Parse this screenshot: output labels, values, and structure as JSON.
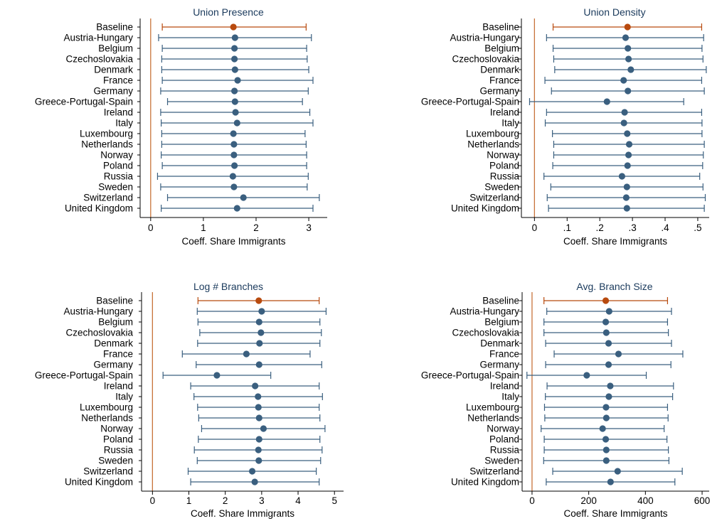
{
  "colors": {
    "baseline": "#b84a0e",
    "country": "#3a5f7f",
    "zero_line": "#c8733a",
    "axis": "#000000"
  },
  "chart_data": [
    {
      "type": "scatter",
      "subtype": "coefficient-plot",
      "title": "Union Presence",
      "xlabel": "Coeff. Share Immigrants",
      "xlim": [
        -0.2,
        3.35
      ],
      "xticks": [
        {
          "v": 0,
          "label": "0"
        },
        {
          "v": 1,
          "label": "1"
        },
        {
          "v": 2,
          "label": "2"
        },
        {
          "v": 3,
          "label": "3"
        }
      ],
      "reference_line": 0,
      "rows": [
        {
          "label": "Baseline",
          "estimate": 1.57,
          "ci": [
            0.22,
            2.95
          ]
        },
        {
          "label": "Austria-Hungary",
          "estimate": 1.6,
          "ci": [
            0.15,
            3.05
          ]
        },
        {
          "label": "Belgium",
          "estimate": 1.59,
          "ci": [
            0.22,
            2.96
          ]
        },
        {
          "label": "Czechoslovakia",
          "estimate": 1.59,
          "ci": [
            0.21,
            2.97
          ]
        },
        {
          "label": "Denmark",
          "estimate": 1.6,
          "ci": [
            0.21,
            3.0
          ]
        },
        {
          "label": "France",
          "estimate": 1.65,
          "ci": [
            0.22,
            3.08
          ]
        },
        {
          "label": "Germany",
          "estimate": 1.59,
          "ci": [
            0.19,
            2.99
          ]
        },
        {
          "label": "Greece-Portugal-Spain",
          "estimate": 1.6,
          "ci": [
            0.32,
            2.88
          ]
        },
        {
          "label": "Ireland",
          "estimate": 1.61,
          "ci": [
            0.19,
            3.02
          ]
        },
        {
          "label": "Italy",
          "estimate": 1.64,
          "ci": [
            0.2,
            3.08
          ]
        },
        {
          "label": "Luxembourg",
          "estimate": 1.57,
          "ci": [
            0.21,
            2.93
          ]
        },
        {
          "label": "Netherlands",
          "estimate": 1.58,
          "ci": [
            0.21,
            2.95
          ]
        },
        {
          "label": "Norway",
          "estimate": 1.58,
          "ci": [
            0.2,
            2.96
          ]
        },
        {
          "label": "Poland",
          "estimate": 1.59,
          "ci": [
            0.22,
            2.96
          ]
        },
        {
          "label": "Russia",
          "estimate": 1.56,
          "ci": [
            0.13,
            2.99
          ]
        },
        {
          "label": "Sweden",
          "estimate": 1.58,
          "ci": [
            0.19,
            2.97
          ]
        },
        {
          "label": "Switzerland",
          "estimate": 1.76,
          "ci": [
            0.32,
            3.2
          ]
        },
        {
          "label": "United Kingdom",
          "estimate": 1.64,
          "ci": [
            0.2,
            3.08
          ]
        }
      ]
    },
    {
      "type": "scatter",
      "subtype": "coefficient-plot",
      "title": "Union Density",
      "xlabel": "Coeff. Share Immigrants",
      "xlim": [
        -0.04,
        0.535
      ],
      "xticks": [
        {
          "v": 0,
          "label": "0"
        },
        {
          "v": 0.1,
          "label": ".1"
        },
        {
          "v": 0.2,
          "label": ".2"
        },
        {
          "v": 0.3,
          "label": ".3"
        },
        {
          "v": 0.4,
          "label": ".4"
        },
        {
          "v": 0.5,
          "label": ".5"
        }
      ],
      "reference_line": 0,
      "rows": [
        {
          "label": "Baseline",
          "estimate": 0.285,
          "ci": [
            0.057,
            0.512
          ]
        },
        {
          "label": "Austria-Hungary",
          "estimate": 0.279,
          "ci": [
            0.037,
            0.518
          ]
        },
        {
          "label": "Belgium",
          "estimate": 0.286,
          "ci": [
            0.057,
            0.513
          ]
        },
        {
          "label": "Czechoslovakia",
          "estimate": 0.288,
          "ci": [
            0.059,
            0.516
          ]
        },
        {
          "label": "Denmark",
          "estimate": 0.295,
          "ci": [
            0.062,
            0.526
          ]
        },
        {
          "label": "France",
          "estimate": 0.273,
          "ci": [
            0.032,
            0.512
          ]
        },
        {
          "label": "Germany",
          "estimate": 0.286,
          "ci": [
            0.052,
            0.52
          ]
        },
        {
          "label": "Greece-Portugal-Spain",
          "estimate": 0.222,
          "ci": [
            -0.015,
            0.457
          ]
        },
        {
          "label": "Ireland",
          "estimate": 0.276,
          "ci": [
            0.037,
            0.512
          ]
        },
        {
          "label": "Italy",
          "estimate": 0.274,
          "ci": [
            0.033,
            0.513
          ]
        },
        {
          "label": "Luxembourg",
          "estimate": 0.284,
          "ci": [
            0.055,
            0.513
          ]
        },
        {
          "label": "Netherlands",
          "estimate": 0.29,
          "ci": [
            0.059,
            0.52
          ]
        },
        {
          "label": "Norway",
          "estimate": 0.288,
          "ci": [
            0.059,
            0.517
          ]
        },
        {
          "label": "Poland",
          "estimate": 0.285,
          "ci": [
            0.056,
            0.515
          ]
        },
        {
          "label": "Russia",
          "estimate": 0.268,
          "ci": [
            0.029,
            0.506
          ]
        },
        {
          "label": "Sweden",
          "estimate": 0.283,
          "ci": [
            0.05,
            0.516
          ]
        },
        {
          "label": "Switzerland",
          "estimate": 0.281,
          "ci": [
            0.039,
            0.523
          ]
        },
        {
          "label": "United Kingdom",
          "estimate": 0.283,
          "ci": [
            0.043,
            0.52
          ]
        }
      ]
    },
    {
      "type": "scatter",
      "subtype": "coefficient-plot",
      "title": "Log # Branches",
      "xlabel": "Coeff. Share Immigrants",
      "xlim": [
        -0.3,
        5.25
      ],
      "xticks": [
        {
          "v": 0,
          "label": "0"
        },
        {
          "v": 1,
          "label": "1"
        },
        {
          "v": 2,
          "label": "2"
        },
        {
          "v": 3,
          "label": "3"
        },
        {
          "v": 4,
          "label": "4"
        },
        {
          "v": 5,
          "label": "5"
        }
      ],
      "reference_line": 0,
      "rows": [
        {
          "label": "Baseline",
          "estimate": 2.92,
          "ci": [
            1.25,
            4.58
          ]
        },
        {
          "label": "Austria-Hungary",
          "estimate": 3.0,
          "ci": [
            1.23,
            4.77
          ]
        },
        {
          "label": "Belgium",
          "estimate": 2.93,
          "ci": [
            1.25,
            4.6
          ]
        },
        {
          "label": "Czechoslovakia",
          "estimate": 2.98,
          "ci": [
            1.3,
            4.64
          ]
        },
        {
          "label": "Denmark",
          "estimate": 2.94,
          "ci": [
            1.24,
            4.6
          ]
        },
        {
          "label": "France",
          "estimate": 2.58,
          "ci": [
            0.82,
            4.33
          ]
        },
        {
          "label": "Germany",
          "estimate": 2.93,
          "ci": [
            1.2,
            4.65
          ]
        },
        {
          "label": "Greece-Portugal-Spain",
          "estimate": 1.77,
          "ci": [
            0.29,
            3.25
          ]
        },
        {
          "label": "Ireland",
          "estimate": 2.82,
          "ci": [
            1.05,
            4.58
          ]
        },
        {
          "label": "Italy",
          "estimate": 2.9,
          "ci": [
            1.14,
            4.67
          ]
        },
        {
          "label": "Luxembourg",
          "estimate": 2.91,
          "ci": [
            1.24,
            4.58
          ]
        },
        {
          "label": "Netherlands",
          "estimate": 2.93,
          "ci": [
            1.27,
            4.6
          ]
        },
        {
          "label": "Norway",
          "estimate": 3.05,
          "ci": [
            1.35,
            4.74
          ]
        },
        {
          "label": "Poland",
          "estimate": 2.93,
          "ci": [
            1.26,
            4.6
          ]
        },
        {
          "label": "Russia",
          "estimate": 2.91,
          "ci": [
            1.15,
            4.66
          ]
        },
        {
          "label": "Sweden",
          "estimate": 2.92,
          "ci": [
            1.23,
            4.62
          ]
        },
        {
          "label": "Switzerland",
          "estimate": 2.74,
          "ci": [
            0.98,
            4.5
          ]
        },
        {
          "label": "United Kingdom",
          "estimate": 2.81,
          "ci": [
            1.05,
            4.58
          ]
        }
      ]
    },
    {
      "type": "scatter",
      "subtype": "coefficient-plot",
      "title": "Avg. Branch Size",
      "xlabel": "Coeff. Share Immigrants",
      "xlim": [
        -35,
        625
      ],
      "xticks": [
        {
          "v": 0,
          "label": "0"
        },
        {
          "v": 200,
          "label": "200"
        },
        {
          "v": 400,
          "label": "400"
        },
        {
          "v": 600,
          "label": "600"
        }
      ],
      "reference_line": 0,
      "rows": [
        {
          "label": "Baseline",
          "estimate": 260,
          "ci": [
            42,
            478
          ]
        },
        {
          "label": "Austria-Hungary",
          "estimate": 272,
          "ci": [
            52,
            492
          ]
        },
        {
          "label": "Belgium",
          "estimate": 260,
          "ci": [
            42,
            478
          ]
        },
        {
          "label": "Czechoslovakia",
          "estimate": 262,
          "ci": [
            42,
            481
          ]
        },
        {
          "label": "Denmark",
          "estimate": 270,
          "ci": [
            48,
            492
          ]
        },
        {
          "label": "France",
          "estimate": 305,
          "ci": [
            78,
            532
          ]
        },
        {
          "label": "Germany",
          "estimate": 270,
          "ci": [
            48,
            490
          ]
        },
        {
          "label": "Greece-Portugal-Spain",
          "estimate": 193,
          "ci": [
            -18,
            403
          ]
        },
        {
          "label": "Ireland",
          "estimate": 276,
          "ci": [
            53,
            499
          ]
        },
        {
          "label": "Italy",
          "estimate": 271,
          "ci": [
            47,
            496
          ]
        },
        {
          "label": "Luxembourg",
          "estimate": 261,
          "ci": [
            44,
            478
          ]
        },
        {
          "label": "Netherlands",
          "estimate": 262,
          "ci": [
            45,
            480
          ]
        },
        {
          "label": "Norway",
          "estimate": 249,
          "ci": [
            32,
            466
          ]
        },
        {
          "label": "Poland",
          "estimate": 260,
          "ci": [
            43,
            476
          ]
        },
        {
          "label": "Russia",
          "estimate": 262,
          "ci": [
            43,
            481
          ]
        },
        {
          "label": "Sweden",
          "estimate": 262,
          "ci": [
            41,
            483
          ]
        },
        {
          "label": "Switzerland",
          "estimate": 302,
          "ci": [
            73,
            530
          ]
        },
        {
          "label": "United Kingdom",
          "estimate": 277,
          "ci": [
            50,
            504
          ]
        }
      ]
    }
  ]
}
